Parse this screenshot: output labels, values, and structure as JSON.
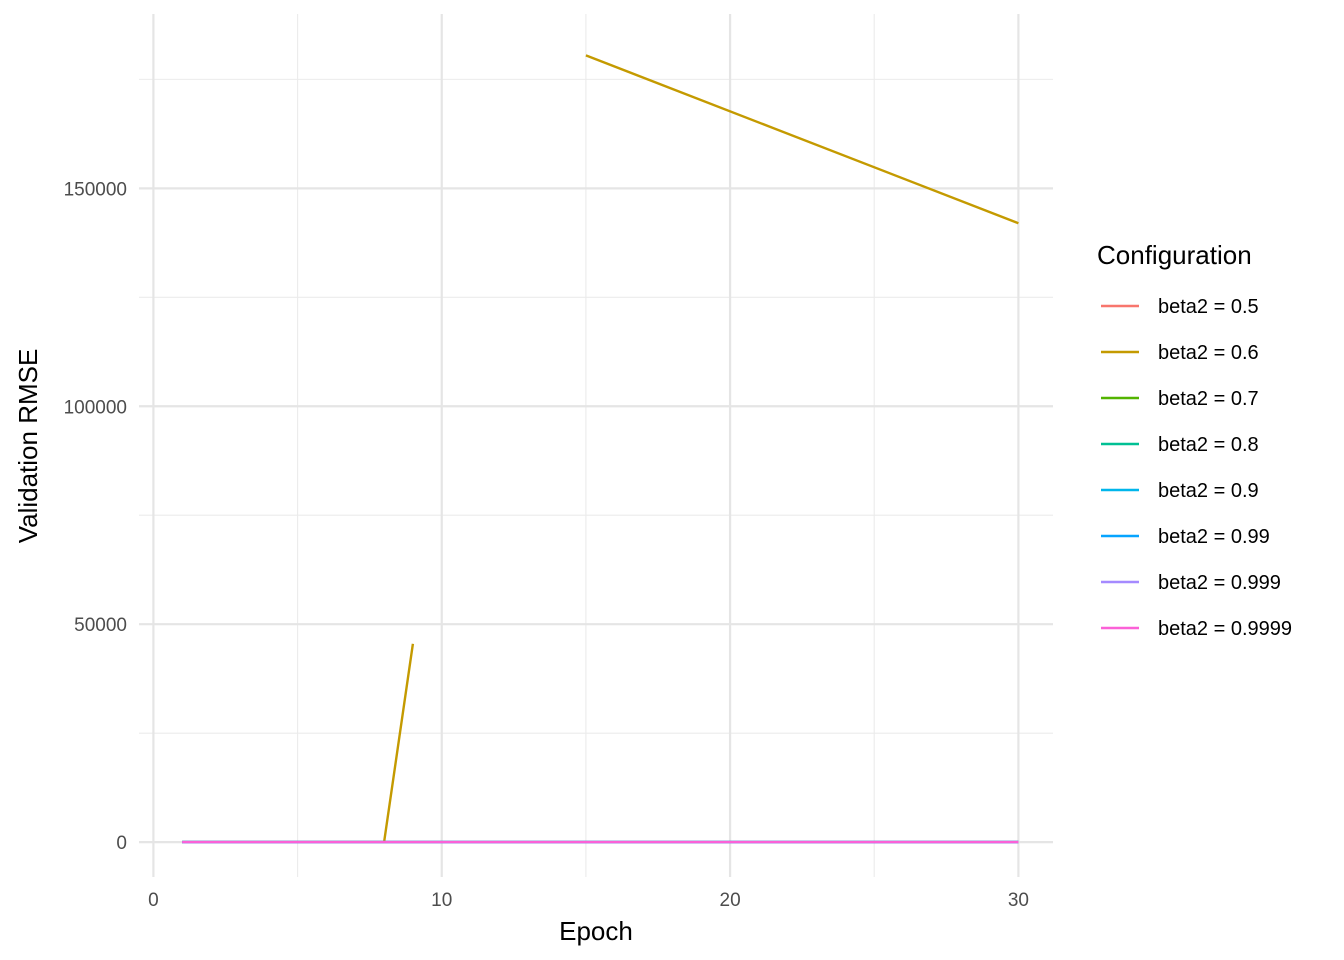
{
  "chart_data": {
    "type": "line",
    "title": "",
    "xlabel": "Epoch",
    "ylabel": "Validation RMSE",
    "xlim": [
      -0.5,
      31.2
    ],
    "ylim": [
      -8000,
      190000
    ],
    "x_ticks": [
      0,
      10,
      20,
      30
    ],
    "x_tick_labels": [
      "0",
      "10",
      "20",
      "30"
    ],
    "x_minor_ticks": [
      5,
      15,
      25
    ],
    "y_ticks": [
      0,
      50000,
      100000,
      150000
    ],
    "y_tick_labels": [
      "0",
      "50000",
      "100000",
      "150000"
    ],
    "y_minor_ticks": [
      25000,
      75000,
      125000,
      175000
    ],
    "grid": true,
    "legend": {
      "title": "Configuration",
      "placement": "right"
    },
    "series": [
      {
        "name": "beta2 = 0.5",
        "color": "#F8766D",
        "segments": [
          [
            [
              1,
              0
            ],
            [
              30,
              0
            ]
          ]
        ]
      },
      {
        "name": "beta2 = 0.6",
        "color": "#C49A00",
        "segments": [
          [
            [
              1,
              0
            ],
            [
              8,
              0
            ],
            [
              9,
              45500
            ]
          ],
          [
            [
              15,
              180500
            ],
            [
              30,
              142000
            ]
          ]
        ]
      },
      {
        "name": "beta2 = 0.7",
        "color": "#53B400",
        "segments": [
          [
            [
              1,
              0
            ],
            [
              30,
              0
            ]
          ]
        ]
      },
      {
        "name": "beta2 = 0.8",
        "color": "#00C094",
        "segments": [
          [
            [
              1,
              0
            ],
            [
              30,
              0
            ]
          ]
        ]
      },
      {
        "name": "beta2 = 0.9",
        "color": "#00B6EB",
        "segments": [
          [
            [
              1,
              0
            ],
            [
              30,
              0
            ]
          ]
        ]
      },
      {
        "name": "beta2 = 0.99",
        "color": "#06A4FF",
        "segments": [
          [
            [
              1,
              0
            ],
            [
              30,
              0
            ]
          ]
        ]
      },
      {
        "name": "beta2 = 0.999",
        "color": "#A58AFF",
        "segments": [
          [
            [
              1,
              0
            ],
            [
              30,
              0
            ]
          ]
        ]
      },
      {
        "name": "beta2 = 0.9999",
        "color": "#FB61D7",
        "segments": [
          [
            [
              1,
              0
            ],
            [
              30,
              0
            ]
          ]
        ]
      }
    ]
  }
}
